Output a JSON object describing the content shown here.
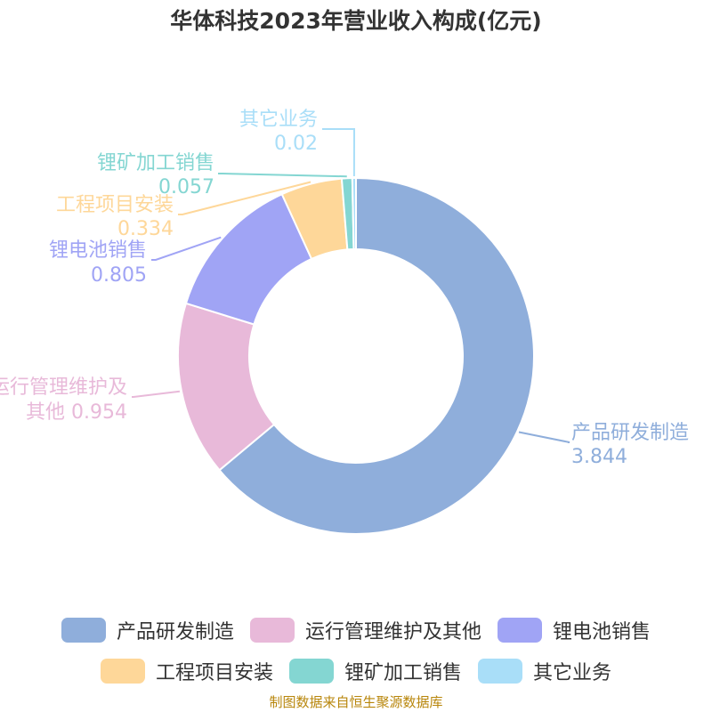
{
  "title": "华体科技2023年营业收入构成(亿元)",
  "source": "制图数据来自恒生聚源数据库",
  "chart_data": {
    "type": "pie",
    "variant": "donut",
    "title": "华体科技2023年营业收入构成(亿元)",
    "slices": [
      {
        "name": "产品研发制造",
        "value": 3.844,
        "label": "3.844",
        "color": "#8FAEDB"
      },
      {
        "name": "运行管理维护及其他",
        "value": 0.954,
        "label": "0.954",
        "color": "#E8B9D9"
      },
      {
        "name": "锂电池销售",
        "value": 0.805,
        "label": "0.805",
        "color": "#A0A4F5"
      },
      {
        "name": "工程项目安装",
        "value": 0.334,
        "label": "0.334",
        "color": "#FED799"
      },
      {
        "name": "锂矿加工销售",
        "value": 0.057,
        "label": "0.057",
        "color": "#84D6D2"
      },
      {
        "name": "其它业务",
        "value": 0.02,
        "label": "0.02",
        "color": "#A9DEF8"
      }
    ],
    "legend_position": "bottom",
    "legend_rows": [
      [
        "产品研发制造",
        "运行管理维护及其他",
        "锂电池销售"
      ],
      [
        "工程项目安装",
        "锂矿加工销售",
        "其它业务"
      ]
    ],
    "label_lines": [
      [
        "产品研发制造",
        "3.844"
      ],
      [
        "运行管理维护及",
        "其他 0.954"
      ],
      [
        "锂电池销售",
        "0.805"
      ],
      [
        "工程项目安装",
        "0.334"
      ],
      [
        "锂矿加工销售",
        "0.057"
      ],
      [
        "其它业务",
        "0.02"
      ]
    ]
  }
}
